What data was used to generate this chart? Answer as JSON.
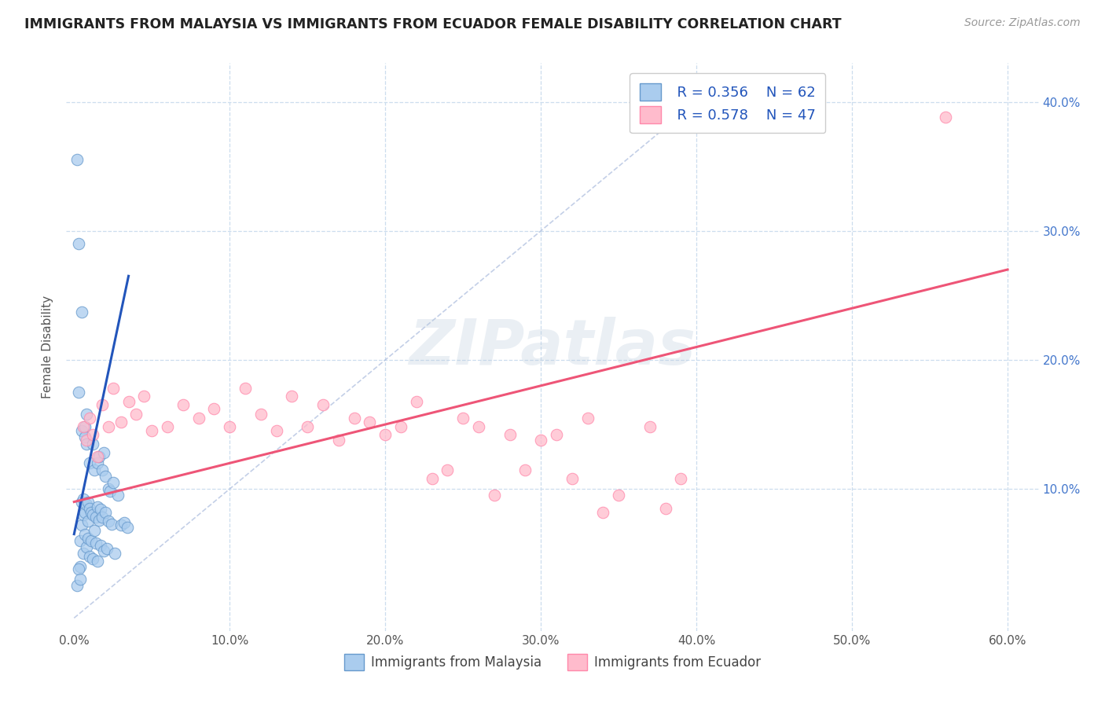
{
  "title": "IMMIGRANTS FROM MALAYSIA VS IMMIGRANTS FROM ECUADOR FEMALE DISABILITY CORRELATION CHART",
  "source_text": "Source: ZipAtlas.com",
  "ylabel": "Female Disability",
  "xlim": [
    -0.005,
    0.62
  ],
  "ylim": [
    -0.01,
    0.43
  ],
  "xticks": [
    0.0,
    0.1,
    0.2,
    0.3,
    0.4,
    0.5,
    0.6
  ],
  "xticklabels": [
    "0.0%",
    "10.0%",
    "20.0%",
    "30.0%",
    "40.0%",
    "50.0%",
    "60.0%"
  ],
  "yticks": [
    0.0,
    0.1,
    0.2,
    0.3,
    0.4
  ],
  "yticklabels": [
    "",
    "",
    "",
    "",
    ""
  ],
  "right_yticks": [
    0.1,
    0.2,
    0.3,
    0.4
  ],
  "right_yticklabels": [
    "10.0%",
    "20.0%",
    "30.0%",
    "40.0%"
  ],
  "malaysia_color": "#aaccee",
  "ecuador_color": "#ffbbcc",
  "malaysia_edge": "#6699cc",
  "ecuador_edge": "#ff88aa",
  "malaysia_line_color": "#2255bb",
  "ecuador_line_color": "#ee5577",
  "diag_line_color": "#aabbdd",
  "legend_r_malaysia": "R = 0.356",
  "legend_n_malaysia": "N = 62",
  "legend_r_ecuador": "R = 0.578",
  "legend_n_ecuador": "N = 47",
  "legend_label_malaysia": "Immigrants from Malaysia",
  "legend_label_ecuador": "Immigrants from Ecuador",
  "watermark": "ZIPatlas",
  "background_color": "#ffffff",
  "grid_color": "#ccddee",
  "malaysia_x": [
    0.002,
    0.003,
    0.003,
    0.004,
    0.004,
    0.005,
    0.005,
    0.005,
    0.005,
    0.006,
    0.006,
    0.006,
    0.007,
    0.007,
    0.007,
    0.007,
    0.008,
    0.008,
    0.008,
    0.008,
    0.009,
    0.009,
    0.009,
    0.01,
    0.01,
    0.01,
    0.011,
    0.011,
    0.012,
    0.012,
    0.012,
    0.013,
    0.013,
    0.014,
    0.014,
    0.015,
    0.015,
    0.015,
    0.016,
    0.016,
    0.017,
    0.017,
    0.018,
    0.018,
    0.019,
    0.019,
    0.02,
    0.02,
    0.021,
    0.022,
    0.022,
    0.023,
    0.024,
    0.025,
    0.026,
    0.028,
    0.03,
    0.032,
    0.034,
    0.002,
    0.003,
    0.004
  ],
  "malaysia_y": [
    0.355,
    0.29,
    0.175,
    0.04,
    0.06,
    0.237,
    0.145,
    0.09,
    0.072,
    0.08,
    0.05,
    0.092,
    0.148,
    0.082,
    0.14,
    0.065,
    0.158,
    0.088,
    0.135,
    0.055,
    0.09,
    0.062,
    0.075,
    0.085,
    0.12,
    0.048,
    0.06,
    0.082,
    0.135,
    0.08,
    0.046,
    0.068,
    0.115,
    0.058,
    0.078,
    0.12,
    0.086,
    0.044,
    0.076,
    0.125,
    0.056,
    0.084,
    0.115,
    0.078,
    0.052,
    0.128,
    0.11,
    0.082,
    0.054,
    0.1,
    0.075,
    0.098,
    0.073,
    0.105,
    0.05,
    0.095,
    0.072,
    0.074,
    0.07,
    0.025,
    0.038,
    0.03
  ],
  "ecuador_x": [
    0.006,
    0.008,
    0.01,
    0.012,
    0.015,
    0.018,
    0.022,
    0.025,
    0.03,
    0.035,
    0.04,
    0.045,
    0.05,
    0.06,
    0.07,
    0.08,
    0.09,
    0.1,
    0.11,
    0.12,
    0.13,
    0.14,
    0.15,
    0.16,
    0.17,
    0.18,
    0.19,
    0.2,
    0.21,
    0.22,
    0.23,
    0.24,
    0.25,
    0.26,
    0.27,
    0.28,
    0.29,
    0.3,
    0.31,
    0.32,
    0.33,
    0.34,
    0.35,
    0.37,
    0.38,
    0.39,
    0.56
  ],
  "ecuador_y": [
    0.148,
    0.138,
    0.155,
    0.142,
    0.125,
    0.165,
    0.148,
    0.178,
    0.152,
    0.168,
    0.158,
    0.172,
    0.145,
    0.148,
    0.165,
    0.155,
    0.162,
    0.148,
    0.178,
    0.158,
    0.145,
    0.172,
    0.148,
    0.165,
    0.138,
    0.155,
    0.152,
    0.142,
    0.148,
    0.168,
    0.108,
    0.115,
    0.155,
    0.148,
    0.095,
    0.142,
    0.115,
    0.138,
    0.142,
    0.108,
    0.155,
    0.082,
    0.095,
    0.148,
    0.085,
    0.108,
    0.388
  ],
  "malaysia_trendline": [
    0.0,
    0.035,
    0.065,
    0.265
  ],
  "ecuador_trendline": [
    0.0,
    0.6,
    0.09,
    0.27
  ]
}
